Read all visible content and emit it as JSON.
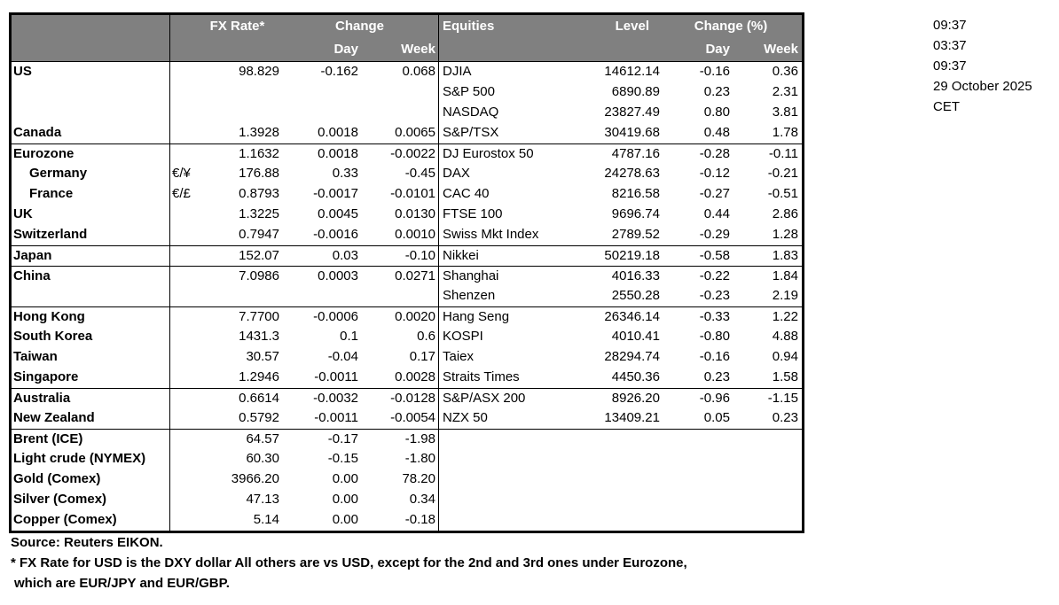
{
  "header": {
    "fx_rate": "FX Rate*",
    "change": "Change",
    "day": "Day",
    "week": "Week",
    "equities": "Equities",
    "level": "Level",
    "change_pct": "Change (%)",
    "eq_day": "Day",
    "eq_week": "Week"
  },
  "rows": [
    {
      "fx": {
        "label": "US",
        "pair": "",
        "rate": "98.829",
        "day": "-0.162",
        "week": "0.068"
      },
      "eq": {
        "label": "DJIA",
        "level": "14612.14",
        "day": "-0.16",
        "week": "0.36"
      }
    },
    {
      "fx": {
        "label": "",
        "pair": "",
        "rate": "",
        "day": "",
        "week": ""
      },
      "eq": {
        "label": "S&P 500",
        "level": "6890.89",
        "day": "0.23",
        "week": "2.31"
      }
    },
    {
      "fx": {
        "label": "",
        "pair": "",
        "rate": "",
        "day": "",
        "week": ""
      },
      "eq": {
        "label": "NASDAQ",
        "level": "23827.49",
        "day": "0.80",
        "week": "3.81"
      }
    },
    {
      "fx": {
        "label": "Canada",
        "pair": "",
        "rate": "1.3928",
        "day": "0.0018",
        "week": "0.0065"
      },
      "eq": {
        "label": "S&P/TSX",
        "level": "30419.68",
        "day": "0.48",
        "week": "1.78"
      }
    },
    {
      "sep": true,
      "fx": {
        "label": "Eurozone",
        "pair": "",
        "rate": "1.1632",
        "day": "0.0018",
        "week": "-0.0022"
      },
      "eq": {
        "label": "DJ Eurostox 50",
        "level": "4787.16",
        "day": "-0.28",
        "week": "-0.11"
      }
    },
    {
      "indent": true,
      "fx": {
        "label": "Germany",
        "pair": "€/¥",
        "rate": "176.88",
        "day": "0.33",
        "week": "-0.45"
      },
      "eq": {
        "label": "DAX",
        "level": "24278.63",
        "day": "-0.12",
        "week": "-0.21"
      }
    },
    {
      "indent": true,
      "fx": {
        "label": "France",
        "pair": "€/£",
        "rate": "0.8793",
        "day": "-0.0017",
        "week": "-0.0101"
      },
      "eq": {
        "label": "CAC 40",
        "level": "8216.58",
        "day": "-0.27",
        "week": "-0.51"
      }
    },
    {
      "fx": {
        "label": "UK",
        "pair": "",
        "rate": "1.3225",
        "day": "0.0045",
        "week": "0.0130"
      },
      "eq": {
        "label": "FTSE 100",
        "level": "9696.74",
        "day": "0.44",
        "week": "2.86"
      }
    },
    {
      "fx": {
        "label": "Switzerland",
        "pair": "",
        "rate": "0.7947",
        "day": "-0.0016",
        "week": "0.0010"
      },
      "eq": {
        "label": "Swiss Mkt Index",
        "level": "2789.52",
        "day": "-0.29",
        "week": "1.28"
      }
    },
    {
      "sep": true,
      "fx": {
        "label": "Japan",
        "pair": "",
        "rate": "152.07",
        "day": "0.03",
        "week": "-0.10"
      },
      "eq": {
        "label": "Nikkei",
        "level": "50219.18",
        "day": "-0.58",
        "week": "1.83"
      }
    },
    {
      "sep": true,
      "fx": {
        "label": "China",
        "pair": "",
        "rate": "7.0986",
        "day": "0.0003",
        "week": "0.0271"
      },
      "eq": {
        "label": "Shanghai",
        "level": "4016.33",
        "day": "-0.22",
        "week": "1.84"
      }
    },
    {
      "fx": {
        "label": "",
        "pair": "",
        "rate": "",
        "day": "",
        "week": ""
      },
      "eq": {
        "label": "Shenzen",
        "level": "2550.28",
        "day": "-0.23",
        "week": "2.19"
      }
    },
    {
      "sep": true,
      "fx": {
        "label": "Hong Kong",
        "pair": "",
        "rate": "7.7700",
        "day": "-0.0006",
        "week": "0.0020"
      },
      "eq": {
        "label": "Hang Seng",
        "level": "26346.14",
        "day": "-0.33",
        "week": "1.22"
      }
    },
    {
      "fx": {
        "label": "South Korea",
        "pair": "",
        "rate": "1431.3",
        "day": "0.1",
        "week": "0.6"
      },
      "eq": {
        "label": "KOSPI",
        "level": "4010.41",
        "day": "-0.80",
        "week": "4.88"
      }
    },
    {
      "fx": {
        "label": "Taiwan",
        "pair": "",
        "rate": "30.57",
        "day": "-0.04",
        "week": "0.17"
      },
      "eq": {
        "label": "Taiex",
        "level": "28294.74",
        "day": "-0.16",
        "week": "0.94"
      }
    },
    {
      "fx": {
        "label": "Singapore",
        "pair": "",
        "rate": "1.2946",
        "day": "-0.0011",
        "week": "0.0028"
      },
      "eq": {
        "label": "Straits Times",
        "level": "4450.36",
        "day": "0.23",
        "week": "1.58"
      }
    },
    {
      "sep": true,
      "fx": {
        "label": "Australia",
        "pair": "",
        "rate": "0.6614",
        "day": "-0.0032",
        "week": "-0.0128"
      },
      "eq": {
        "label": "S&P/ASX 200",
        "level": "8926.20",
        "day": "-0.96",
        "week": "-1.15"
      }
    },
    {
      "fx": {
        "label": "New Zealand",
        "pair": "",
        "rate": "0.5792",
        "day": "-0.0011",
        "week": "-0.0054"
      },
      "eq": {
        "label": "NZX 50",
        "level": "13409.21",
        "day": "0.05",
        "week": "0.23"
      }
    },
    {
      "sep": true,
      "fx": {
        "label": "Brent (ICE)",
        "pair": "",
        "rate": "64.57",
        "day": "-0.17",
        "week": "-1.98"
      },
      "eq": {
        "label": "",
        "level": "",
        "day": "",
        "week": ""
      }
    },
    {
      "fx": {
        "label": "Light crude (NYMEX)",
        "pair": "",
        "rate": "60.30",
        "day": "-0.15",
        "week": "-1.80"
      },
      "eq": {
        "label": "",
        "level": "",
        "day": "",
        "week": ""
      }
    },
    {
      "fx": {
        "label": "Gold (Comex)",
        "pair": "",
        "rate": "3966.20",
        "day": "0.00",
        "week": "78.20"
      },
      "eq": {
        "label": "",
        "level": "",
        "day": "",
        "week": ""
      }
    },
    {
      "fx": {
        "label": "Silver (Comex)",
        "pair": "",
        "rate": "47.13",
        "day": "0.00",
        "week": "0.34"
      },
      "eq": {
        "label": "",
        "level": "",
        "day": "",
        "week": ""
      }
    },
    {
      "fx": {
        "label": "Copper (Comex)",
        "pair": "",
        "rate": "5.14",
        "day": "0.00",
        "week": "-0.18"
      },
      "eq": {
        "label": "",
        "level": "",
        "day": "",
        "week": ""
      }
    }
  ],
  "timestamps": [
    "09:37",
    "03:37",
    "09:37",
    "29 October 2025",
    "CET"
  ],
  "footer": {
    "source": "Source:  Reuters EIKON.",
    "note1": "* FX Rate for USD is the DXY dollar  All others are vs USD, except for the 2nd and 3rd ones under Eurozone,",
    "note2": "which are EUR/JPY and EUR/GBP."
  },
  "colors": {
    "header_bg": "#808080",
    "header_text": "#ffffff",
    "border": "#000000"
  }
}
